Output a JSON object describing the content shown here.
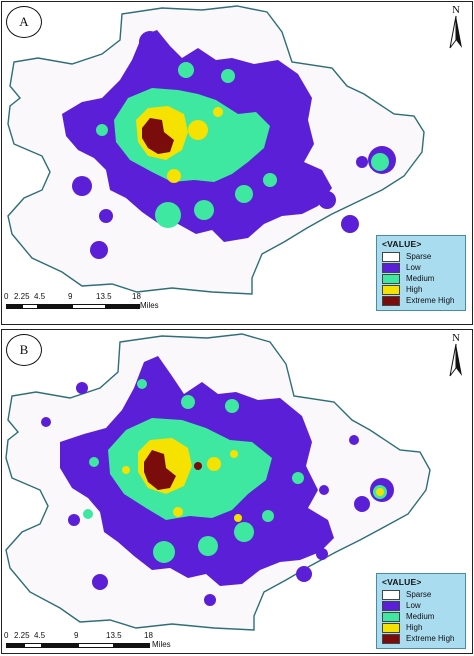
{
  "colors": {
    "sparse": "#ffffff",
    "low": "#5a1fd6",
    "medium": "#3ee8a0",
    "high": "#f5e200",
    "extreme_high": "#7a0c0c",
    "boundary_fill": "#fbf8fc",
    "boundary_stroke": "#2e6e77"
  },
  "panels": [
    {
      "letter": "A",
      "north": "N",
      "legend": {
        "title": "<VALUE>",
        "items": [
          {
            "label": "Sparse",
            "color": "#ffffff"
          },
          {
            "label": "Low",
            "color": "#5a1fd6"
          },
          {
            "label": "Medium",
            "color": "#3ee8a0"
          },
          {
            "label": "High",
            "color": "#f5e200"
          },
          {
            "label": "Extreme High",
            "color": "#7a0c0c"
          }
        ]
      },
      "scale": {
        "ticks": [
          "0",
          "2.25",
          "4.5",
          "9",
          "13.5",
          "18"
        ],
        "unit": "Miles"
      }
    },
    {
      "letter": "B",
      "north": "N",
      "legend": {
        "title": "<VALUE>",
        "items": [
          {
            "label": "Sparse",
            "color": "#ffffff"
          },
          {
            "label": "Low",
            "color": "#5a1fd6"
          },
          {
            "label": "Medium",
            "color": "#3ee8a0"
          },
          {
            "label": "High",
            "color": "#f5e200"
          },
          {
            "label": "Extreme High",
            "color": "#7a0c0c"
          }
        ]
      },
      "scale": {
        "ticks": [
          "0",
          "2.25",
          "4.5",
          "9",
          "13.5",
          "18"
        ],
        "unit": "Miles"
      }
    }
  ]
}
